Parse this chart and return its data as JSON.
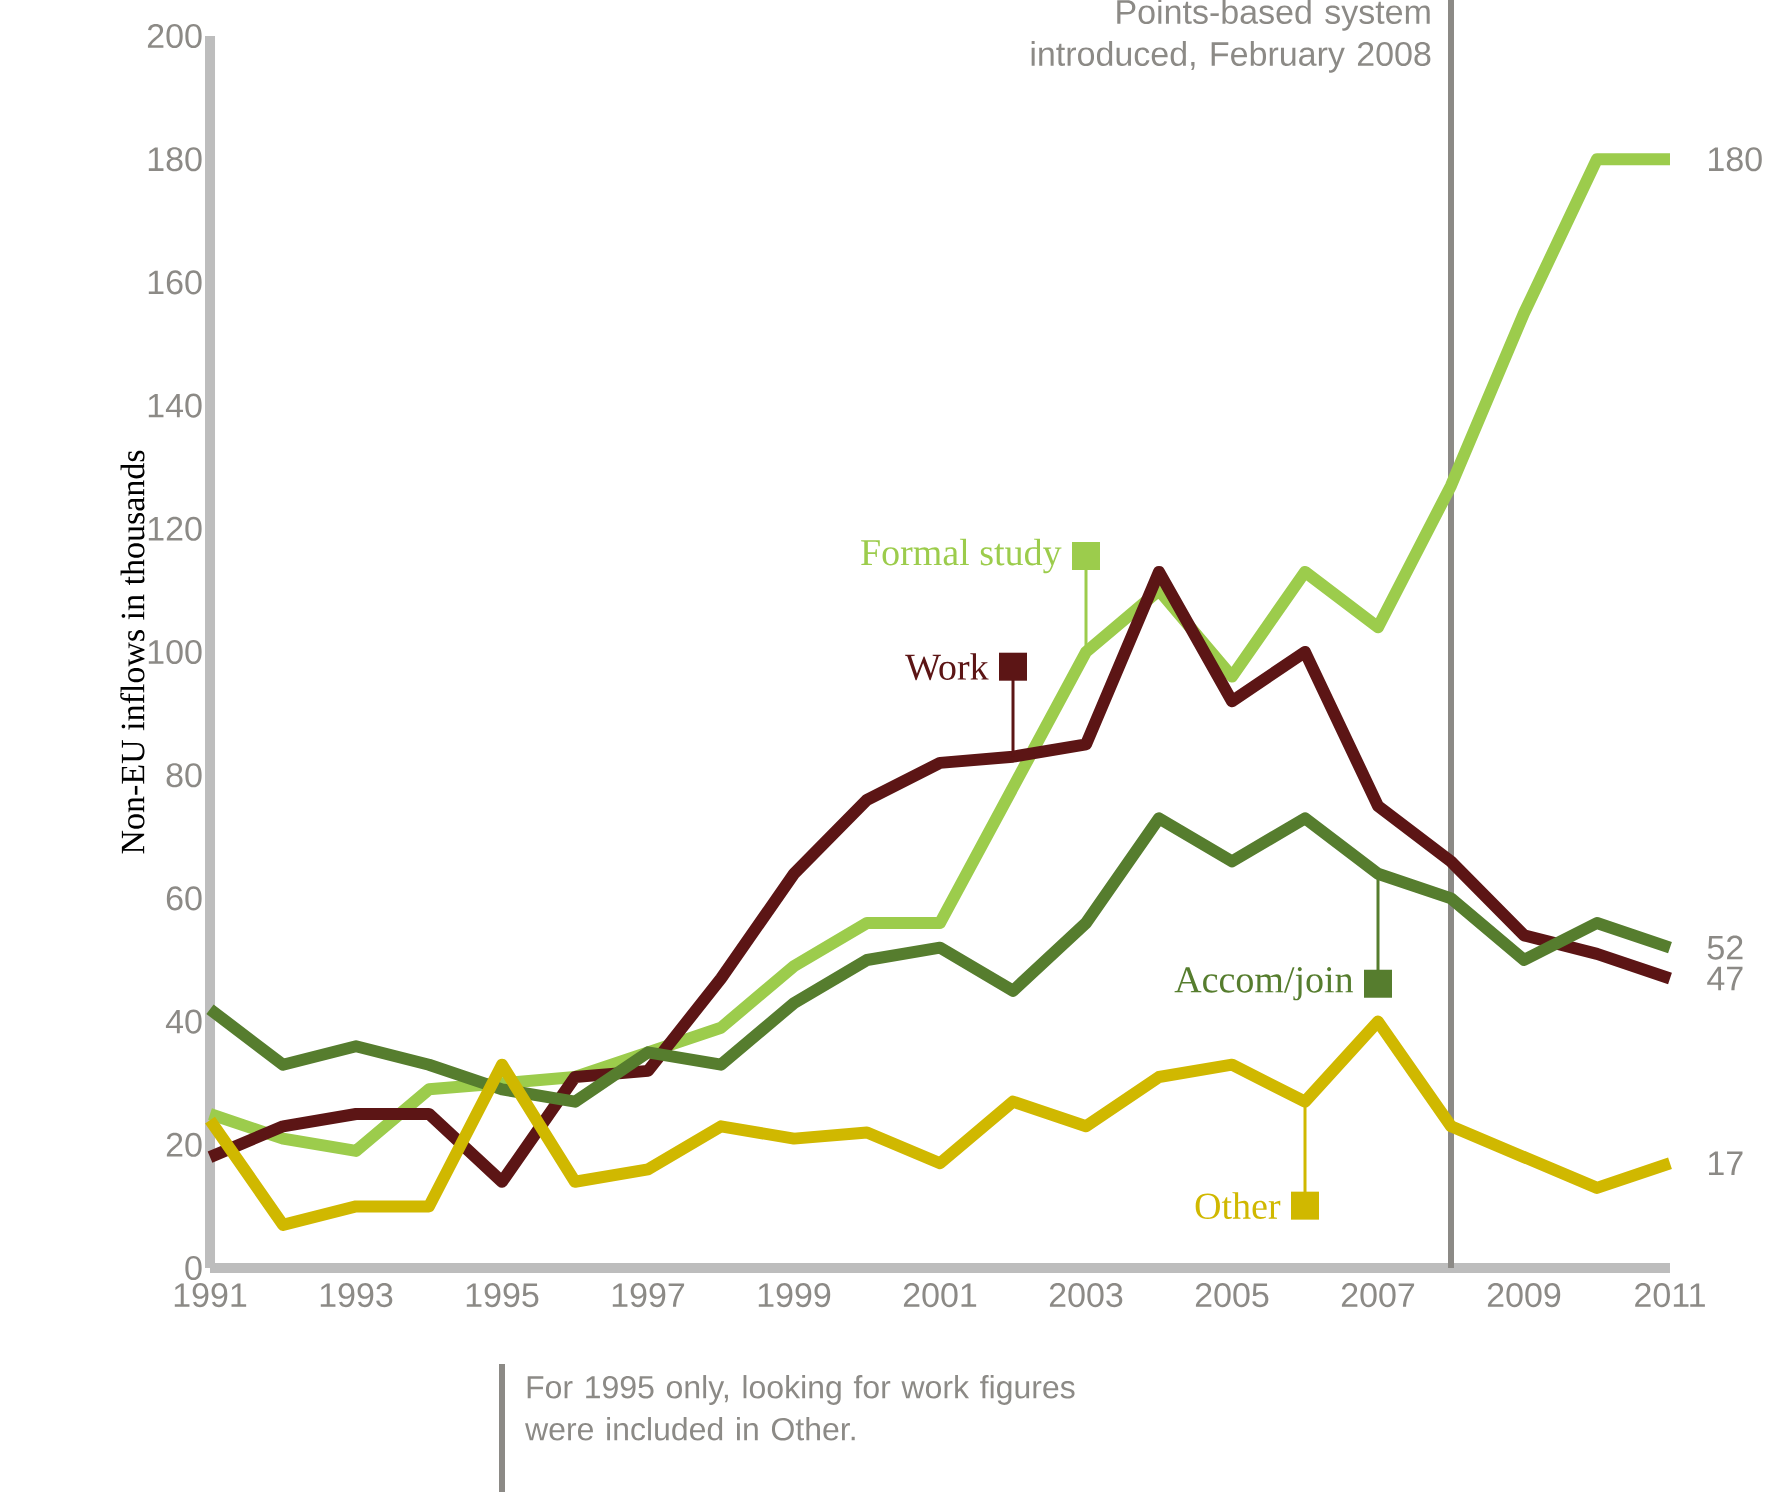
{
  "chart_data": {
    "type": "line",
    "ylabel": "Non-EU inflows in thousands",
    "x": [
      1991,
      1992,
      1993,
      1994,
      1995,
      1996,
      1997,
      1998,
      1999,
      2000,
      2001,
      2002,
      2003,
      2004,
      2005,
      2006,
      2007,
      2008,
      2009,
      2010,
      2011
    ],
    "xlim": [
      1991,
      2011
    ],
    "xticks": [
      1991,
      1993,
      1995,
      1997,
      1999,
      2001,
      2003,
      2005,
      2007,
      2009,
      2011
    ],
    "ylim": [
      0,
      200
    ],
    "yticks": [
      0,
      20,
      40,
      60,
      80,
      100,
      120,
      140,
      160,
      180,
      200
    ],
    "series": [
      {
        "name": "Formal study",
        "color": "#9ccc4c",
        "values": [
          25,
          21,
          19,
          29,
          30,
          31,
          35,
          39,
          49,
          56,
          56,
          78,
          100,
          110,
          96,
          113,
          104,
          127,
          155,
          180,
          180
        ],
        "value_labels": [
          null,
          null,
          null,
          null,
          null,
          null,
          null,
          null,
          null,
          null,
          null,
          null,
          null,
          null,
          null,
          null,
          null,
          null,
          null,
          null,
          "180"
        ]
      },
      {
        "name": "Work",
        "color": "#5c1515",
        "values": [
          18,
          23,
          25,
          25,
          14,
          31,
          32,
          47,
          64,
          76,
          82,
          83,
          85,
          113,
          92,
          100,
          75,
          66,
          54,
          51,
          47
        ],
        "value_labels": [
          null,
          null,
          null,
          null,
          null,
          null,
          null,
          null,
          null,
          null,
          null,
          null,
          null,
          null,
          null,
          null,
          null,
          null,
          null,
          null,
          "47"
        ]
      },
      {
        "name": "Accom/join",
        "color": "#567d2e",
        "values": [
          42,
          33,
          36,
          33,
          29,
          27,
          35,
          33,
          43,
          50,
          52,
          45,
          56,
          73,
          66,
          73,
          64,
          60,
          50,
          56,
          52
        ],
        "value_labels": [
          null,
          null,
          null,
          null,
          null,
          null,
          null,
          null,
          null,
          null,
          null,
          null,
          null,
          null,
          null,
          null,
          null,
          null,
          null,
          null,
          "52"
        ]
      },
      {
        "name": "Other",
        "color": "#d0b800",
        "values": [
          24,
          7,
          10,
          10,
          33,
          14,
          16,
          23,
          21,
          22,
          17,
          27,
          23,
          31,
          33,
          27,
          40,
          23,
          18,
          13,
          17
        ],
        "value_labels": [
          null,
          null,
          null,
          null,
          null,
          null,
          null,
          null,
          null,
          null,
          null,
          null,
          null,
          null,
          null,
          null,
          null,
          null,
          null,
          null,
          "17"
        ]
      }
    ],
    "ref_lines": [
      {
        "axis": "x",
        "value": 2008,
        "label": "Points-based system introduced, February 2008",
        "color": "#8c8a86"
      }
    ],
    "annotations": [
      "For 1995 only, looking for work figures were included in Other."
    ],
    "legend": "center"
  }
}
